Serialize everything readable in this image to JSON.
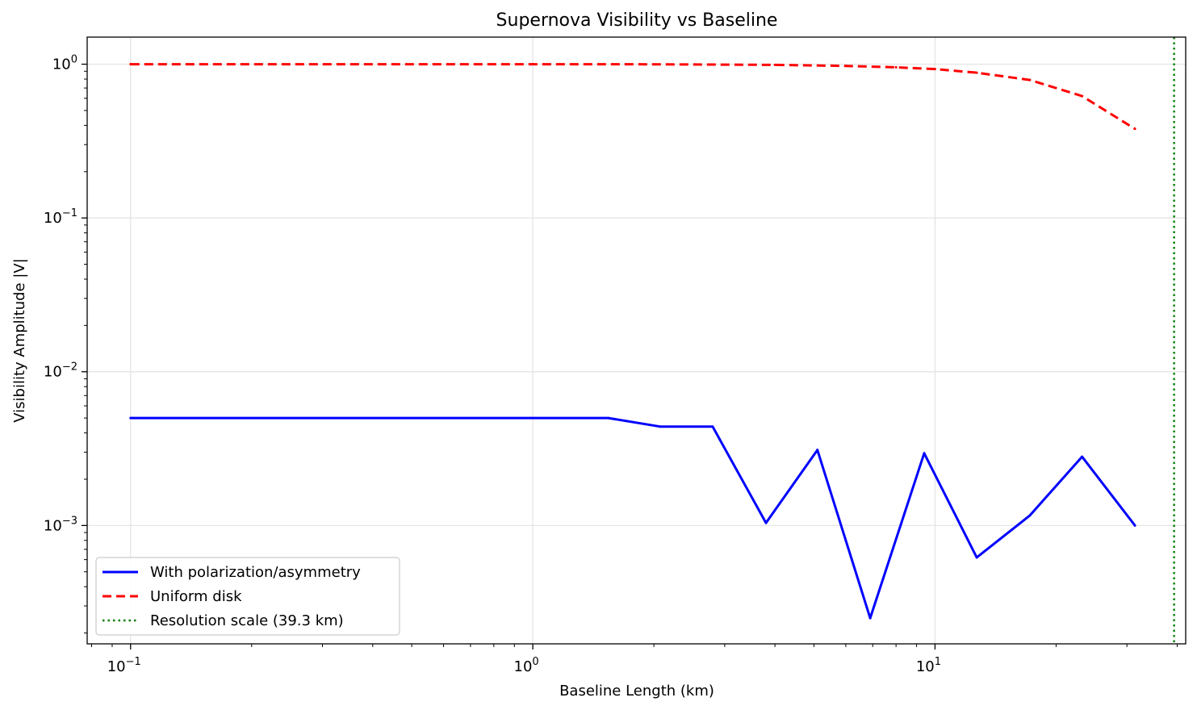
{
  "chart_data": {
    "type": "line",
    "title": "Supernova Visibility vs Baseline",
    "xlabel": "Baseline Length (km)",
    "ylabel": "Visibility Amplitude |V|",
    "xscale": "log",
    "yscale": "log",
    "xlim": [
      0.078,
      42.0
    ],
    "ylim": [
      0.00017,
      1.5
    ],
    "grid": true,
    "legend_position": "lower-left",
    "x_ticks": [
      {
        "value": 0.1,
        "base": "10",
        "exp": "−1"
      },
      {
        "value": 1,
        "base": "10",
        "exp": "0"
      },
      {
        "value": 10,
        "base": "10",
        "exp": "1"
      }
    ],
    "y_ticks": [
      {
        "value": 1,
        "base": "10",
        "exp": "0"
      },
      {
        "value": 0.1,
        "base": "10",
        "exp": "−1"
      },
      {
        "value": 0.01,
        "base": "10",
        "exp": "−2"
      },
      {
        "value": 0.001,
        "base": "10",
        "exp": "−3"
      }
    ],
    "series": [
      {
        "name": "With polarization/asymmetry",
        "color": "#0000ff",
        "style": "solid",
        "x": [
          0.1,
          1.54,
          2.07,
          2.8,
          3.8,
          5.1,
          6.9,
          9.4,
          12.7,
          17.2,
          23.2,
          31.4
        ],
        "y": [
          0.005,
          0.005,
          0.0044,
          0.0044,
          0.00104,
          0.0031,
          0.00025,
          0.00295,
          0.00062,
          0.00116,
          0.0028,
          0.001
        ]
      },
      {
        "name": "Uniform disk",
        "color": "#ff0000",
        "style": "dashed",
        "x": [
          0.1,
          1.0,
          2.0,
          4.0,
          6.0,
          8.0,
          10.0,
          12.7,
          17.2,
          23.2,
          31.4
        ],
        "y": [
          1.0,
          1.0,
          0.998,
          0.99,
          0.975,
          0.955,
          0.93,
          0.88,
          0.79,
          0.62,
          0.38
        ]
      }
    ],
    "reference_line": {
      "name": "Resolution scale (39.3 km)",
      "color": "#008000",
      "style": "dotted",
      "x": 39.3
    }
  }
}
